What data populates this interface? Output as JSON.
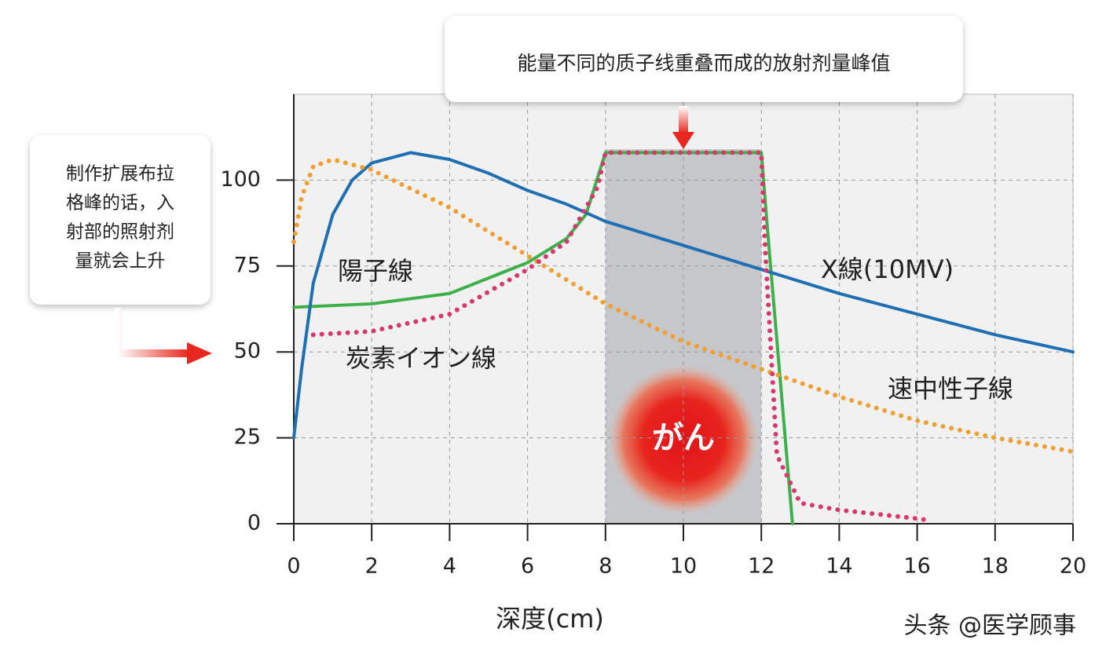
{
  "chart_data": {
    "type": "line",
    "x_label": "深度(cm)",
    "xlim": [
      0,
      20
    ],
    "ylim": [
      0,
      125
    ],
    "xticks": [
      0,
      2,
      4,
      6,
      8,
      10,
      12,
      14,
      16,
      18,
      20
    ],
    "yticks": [
      0,
      25,
      50,
      75,
      100
    ],
    "grid": true,
    "highlight_x": [
      8,
      12
    ],
    "series": [
      {
        "name": "X線(10MV)",
        "color": "#1f6fb5",
        "style": "solid",
        "x": [
          0,
          0.2,
          0.5,
          1,
          1.5,
          2,
          3,
          4,
          5,
          6,
          7,
          8,
          10,
          12,
          14,
          16,
          18,
          20
        ],
        "values": [
          25,
          45,
          70,
          90,
          100,
          105,
          108,
          106,
          102,
          97,
          93,
          88,
          81,
          74,
          67,
          61,
          55,
          50
        ]
      },
      {
        "name": "陽子線",
        "color": "#3db04a",
        "style": "solid",
        "x": [
          0,
          2,
          4,
          6,
          7,
          7.5,
          8,
          12,
          12.2,
          12.5,
          12.8
        ],
        "values": [
          63,
          64,
          67,
          76,
          83,
          90,
          108,
          108,
          80,
          40,
          0
        ]
      },
      {
        "name": "炭素イオン線",
        "color": "#d9356e",
        "style": "dotted",
        "x": [
          0.5,
          2,
          4,
          6,
          7,
          7.8,
          8,
          12,
          12.1,
          12.4,
          13,
          14,
          16,
          16.3
        ],
        "values": [
          55,
          56,
          61,
          74,
          82,
          98,
          108,
          108,
          80,
          20,
          6,
          4,
          1.5,
          1
        ]
      },
      {
        "name": "速中性子線",
        "color": "#f0a030",
        "style": "dotted",
        "x": [
          0,
          0.2,
          0.5,
          1,
          2,
          4,
          6,
          8,
          10,
          12,
          14,
          16,
          18,
          20
        ],
        "values": [
          82,
          95,
          104,
          106,
          103,
          92,
          78,
          64,
          53,
          45,
          37,
          30,
          25,
          21
        ]
      }
    ],
    "top_note": "能量不同的质子线重叠而成的放射剂量峰值",
    "left_note_lines": [
      "制作扩展布拉",
      "格峰的话，入",
      "射部的照射剂",
      "量就会上升"
    ],
    "tumor_label": "がん",
    "watermark": "头条 @医学顾事"
  }
}
